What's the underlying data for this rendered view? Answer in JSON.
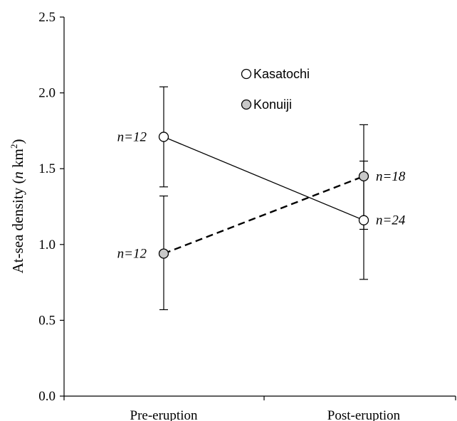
{
  "chart_data": {
    "type": "line",
    "title": "",
    "xlabel": "",
    "ylabel": {
      "prefix": "At-sea density (",
      "italic": "n",
      "unit_base": " km",
      "unit_sup": "2",
      "suffix": ")"
    },
    "categories": [
      "Pre-eruption",
      "Post-eruption"
    ],
    "ylim": [
      0.0,
      2.5
    ],
    "yticks": [
      "0.0",
      "0.5",
      "1.0",
      "1.5",
      "2.0",
      "2.5"
    ],
    "legend_position": "top-center",
    "series": [
      {
        "name": "Kasatochi",
        "marker_fill": "#ffffff",
        "line_style": "solid",
        "values": [
          1.71,
          1.16
        ],
        "error_low": [
          1.38,
          1.1
        ],
        "error_high": [
          2.04,
          1.55
        ],
        "n_labels": [
          "n=12",
          "n=24"
        ]
      },
      {
        "name": "Konuiji",
        "marker_fill": "#c8c8c8",
        "line_style": "dashed",
        "values": [
          0.94,
          1.45
        ],
        "error_low": [
          0.57,
          0.77
        ],
        "error_high": [
          1.32,
          1.79
        ],
        "n_labels": [
          "n=12",
          "n=18"
        ]
      }
    ]
  }
}
